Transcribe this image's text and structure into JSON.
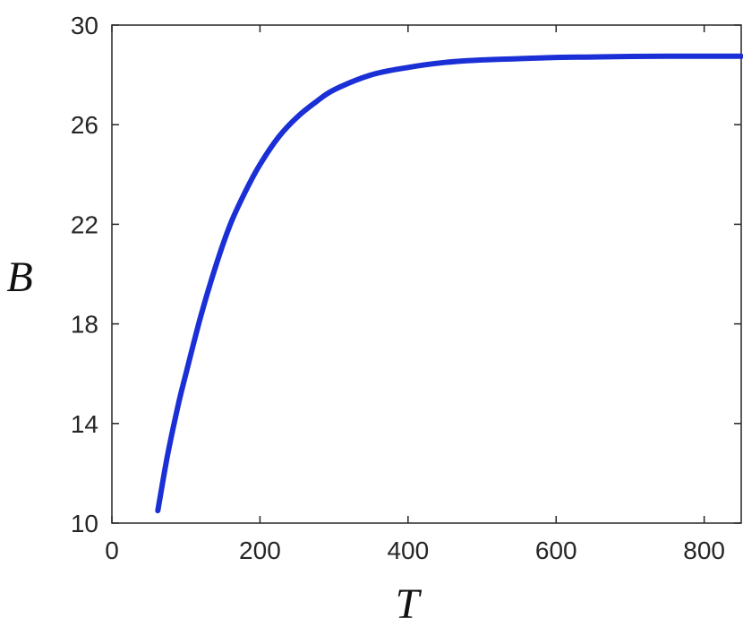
{
  "chart_data": {
    "type": "line",
    "title": "",
    "xlabel": "T",
    "ylabel": "B",
    "xlim": [
      0,
      850
    ],
    "ylim": [
      10,
      30
    ],
    "xticks": [
      0,
      200,
      400,
      600,
      800
    ],
    "yticks": [
      10,
      14,
      18,
      22,
      26,
      30
    ],
    "xtick_labels": [
      "0",
      "200",
      "400",
      "600",
      "800"
    ],
    "ytick_labels": [
      "10",
      "14",
      "18",
      "22",
      "26",
      "30"
    ],
    "grid": false,
    "legend": "none",
    "series": [
      {
        "color": "#1a2fd6",
        "x": [
          62,
          75,
          90,
          100,
          120,
          140,
          160,
          180,
          200,
          225,
          250,
          275,
          300,
          350,
          400,
          450,
          500,
          550,
          600,
          650,
          700,
          750,
          800,
          850
        ],
        "y": [
          10.5,
          12.7,
          14.8,
          16.0,
          18.3,
          20.3,
          22.0,
          23.3,
          24.4,
          25.5,
          26.3,
          26.9,
          27.4,
          28.0,
          28.3,
          28.5,
          28.6,
          28.65,
          28.7,
          28.72,
          28.74,
          28.75,
          28.75,
          28.75
        ]
      }
    ]
  }
}
